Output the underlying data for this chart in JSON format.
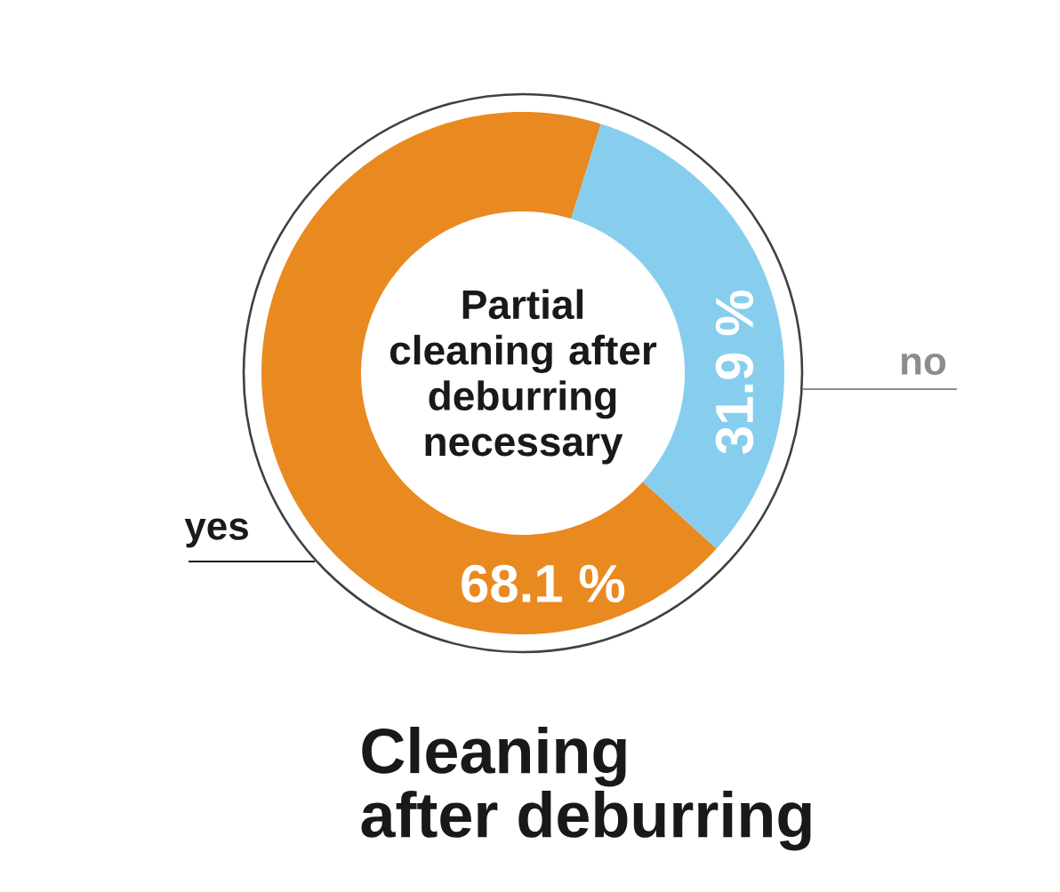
{
  "chart_data": {
    "type": "donut",
    "title": "Cleaning after deburring",
    "annotations": [
      "Partial cleaning after deburring necessary"
    ],
    "categories": [
      "yes",
      "no"
    ],
    "values": [
      68.1,
      31.9
    ],
    "colors": [
      "#e98a21",
      "#87ceee"
    ],
    "value_labels": [
      "68.1 %",
      "31.9 %"
    ]
  }
}
